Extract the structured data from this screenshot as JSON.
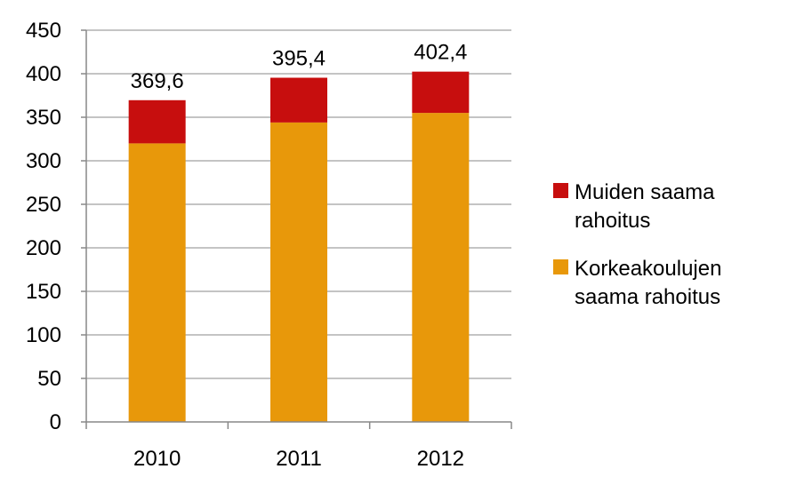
{
  "chart_data": {
    "type": "bar",
    "stacked": true,
    "title": "",
    "xlabel": "",
    "ylabel": "",
    "categories": [
      "2010",
      "2011",
      "2012"
    ],
    "ylim": [
      0,
      450
    ],
    "yticks": [
      0,
      50,
      100,
      150,
      200,
      250,
      300,
      350,
      400,
      450
    ],
    "ytick_labels": [
      "0",
      "50",
      "100",
      "150",
      "200",
      "250",
      "300",
      "350",
      "400",
      "450"
    ],
    "grid": true,
    "legend_position": "right",
    "series": [
      {
        "name": "Korkeakoulujen saama rahoitus",
        "legend_lines": [
          "Korkeakoulujen",
          "saama rahoitus"
        ],
        "color": "#E8980A",
        "values": [
          320,
          344,
          355
        ]
      },
      {
        "name": "Muiden saama rahoitus",
        "legend_lines": [
          "Muiden saama",
          "rahoitus"
        ],
        "color": "#C70E0E",
        "values": [
          49.6,
          51.4,
          47.4
        ]
      }
    ],
    "totals": [
      369.6,
      395.4,
      402.4
    ],
    "total_labels": [
      "369,6",
      "395,4",
      "402,4"
    ],
    "legend_order": [
      1,
      0
    ]
  }
}
